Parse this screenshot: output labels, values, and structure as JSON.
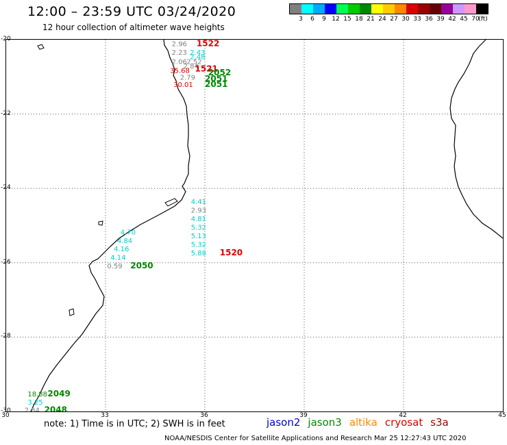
{
  "title": "12:00 – 23:59 UTC 03/24/2020",
  "subtitle": "12 hour collection of altimeter wave heights",
  "legend": {
    "unit": "(ft)",
    "items": [
      {
        "color": "#7f7f7f",
        "label": "3"
      },
      {
        "color": "#00ffff",
        "label": "6"
      },
      {
        "color": "#00aaff",
        "label": "9"
      },
      {
        "color": "#0000ff",
        "label": "12"
      },
      {
        "color": "#00ff55",
        "label": "15"
      },
      {
        "color": "#00cc00",
        "label": "18"
      },
      {
        "color": "#008800",
        "label": "21"
      },
      {
        "color": "#ffff00",
        "label": "24"
      },
      {
        "color": "#ffcc00",
        "label": "27"
      },
      {
        "color": "#ff8800",
        "label": "30"
      },
      {
        "color": "#dd0000",
        "label": "33"
      },
      {
        "color": "#990000",
        "label": "36"
      },
      {
        "color": "#660000",
        "label": "39"
      },
      {
        "color": "#990099",
        "label": "42"
      },
      {
        "color": "#cc99ff",
        "label": "45"
      },
      {
        "color": "#ff99cc",
        "label": "70"
      },
      {
        "color": "#000000",
        "label": ""
      }
    ]
  },
  "map": {
    "lat_range": [
      -30,
      -20
    ],
    "lon_range": [
      30,
      45
    ],
    "lat_ticks": [
      "-20",
      "-22",
      "-24",
      "-26",
      "-28",
      "-30"
    ],
    "lon_ticks": [
      "30",
      "33",
      "36",
      "39",
      "42",
      "45"
    ],
    "gridlines": "dotted"
  },
  "observations": [
    {
      "text": "2.96",
      "color": "#7f7f7f",
      "lon": 35.0,
      "lat": -20.1
    },
    {
      "text": "1522",
      "color": "#dd0000",
      "lon": 35.75,
      "lat": -20.1
    },
    {
      "text": "2.23",
      "color": "#7f7f7f",
      "lon": 35.0,
      "lat": -20.33
    },
    {
      "text": "2.43",
      "color": "#00cccc",
      "lon": 35.55,
      "lat": -20.33
    },
    {
      "text": "2.48",
      "color": "#00cccc",
      "lon": 35.55,
      "lat": -20.45
    },
    {
      "text": "2.06",
      "color": "#7f7f7f",
      "lon": 35.0,
      "lat": -20.58
    },
    {
      "text": "2.52",
      "color": "#7f7f7f",
      "lon": 35.45,
      "lat": -20.58
    },
    {
      "text": "2.84",
      "color": "#7f7f7f",
      "lon": 35.35,
      "lat": -20.7
    },
    {
      "text": "35.68",
      "color": "#dd0000",
      "lon": 34.95,
      "lat": -20.82
    },
    {
      "text": "1521",
      "color": "#dd0000",
      "lon": 35.7,
      "lat": -20.78
    },
    {
      "text": "2052",
      "color": "#008800",
      "lon": 36.1,
      "lat": -20.88
    },
    {
      "text": "2.79",
      "color": "#7f7f7f",
      "lon": 35.25,
      "lat": -21.0
    },
    {
      "text": "2051",
      "color": "#008800",
      "lon": 36.0,
      "lat": -21.05
    },
    {
      "text": "30.01",
      "color": "#dd0000",
      "lon": 35.05,
      "lat": -21.2
    },
    {
      "text": "2051",
      "color": "#008800",
      "lon": 36.0,
      "lat": -21.2
    },
    {
      "text": "4.41",
      "color": "#00cccc",
      "lon": 35.58,
      "lat": -24.35
    },
    {
      "text": "2.93",
      "color": "#7f7f7f",
      "lon": 35.58,
      "lat": -24.58
    },
    {
      "text": "4.81",
      "color": "#00cccc",
      "lon": 35.58,
      "lat": -24.81
    },
    {
      "text": "5.32",
      "color": "#00cccc",
      "lon": 35.58,
      "lat": -25.04
    },
    {
      "text": "5.13",
      "color": "#00cccc",
      "lon": 35.58,
      "lat": -25.27
    },
    {
      "text": "5.32",
      "color": "#00cccc",
      "lon": 35.58,
      "lat": -25.5
    },
    {
      "text": "5.88",
      "color": "#00cccc",
      "lon": 35.58,
      "lat": -25.73
    },
    {
      "text": "1520",
      "color": "#dd0000",
      "lon": 36.45,
      "lat": -25.73
    },
    {
      "text": "4.70",
      "color": "#00cccc",
      "lon": 33.45,
      "lat": -25.17
    },
    {
      "text": "4.84",
      "color": "#00cccc",
      "lon": 33.35,
      "lat": -25.4
    },
    {
      "text": "4.16",
      "color": "#00cccc",
      "lon": 33.25,
      "lat": -25.62
    },
    {
      "text": "4.14",
      "color": "#00cccc",
      "lon": 33.15,
      "lat": -25.85
    },
    {
      "text": "0.59",
      "color": "#7f7f7f",
      "lon": 33.05,
      "lat": -26.08
    },
    {
      "text": "2050",
      "color": "#008800",
      "lon": 33.75,
      "lat": -26.08
    },
    {
      "text": "18.88",
      "color": "#008800",
      "lon": 30.65,
      "lat": -29.52
    },
    {
      "text": "2049",
      "color": "#008800",
      "lon": 31.25,
      "lat": -29.52
    },
    {
      "text": "3.25",
      "color": "#00cccc",
      "lon": 30.65,
      "lat": -29.74
    },
    {
      "text": "2.84",
      "color": "#7f7f7f",
      "lon": 30.55,
      "lat": -29.95
    },
    {
      "text": "2048",
      "color": "#008800",
      "lon": 31.15,
      "lat": -29.95
    }
  ],
  "note": "note: 1) Time is in UTC; 2) SWH is in feet",
  "satellites": [
    {
      "name": "jason2",
      "color": "#0000cc"
    },
    {
      "name": "jason3",
      "color": "#008800"
    },
    {
      "name": "altika",
      "color": "#ff8800"
    },
    {
      "name": "cryosat",
      "color": "#dd0000"
    },
    {
      "name": "s3a",
      "color": "#990000"
    }
  ],
  "footer": "NOAA/NESDIS Center for Satellite Applications and Research    Mar 25 12:27:43 UTC 2020"
}
